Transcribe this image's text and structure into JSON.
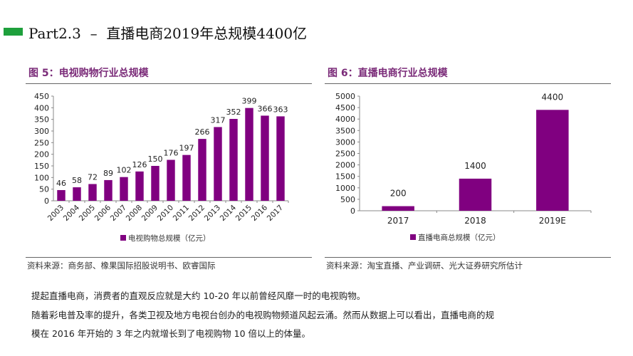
{
  "header": {
    "title": "Part2.3  –  直播电商2019年总规模4400亿",
    "accent": "#1ea03c"
  },
  "chart_data": [
    {
      "type": "bar",
      "title": "图 5：电视购物行业总规模",
      "categories": [
        "2003",
        "2004",
        "2005",
        "2006",
        "2007",
        "2008",
        "2009",
        "2010",
        "2011",
        "2012",
        "2013",
        "2014",
        "2015",
        "2016",
        "2017"
      ],
      "series": [
        {
          "name": "电视购物总规模（亿元）",
          "values": [
            46,
            58,
            72,
            89,
            102,
            126,
            150,
            176,
            197,
            266,
            317,
            352,
            399,
            366,
            363
          ]
        }
      ],
      "ylim": [
        0,
        450
      ],
      "yticks": [
        0,
        50,
        100,
        150,
        200,
        250,
        300,
        350,
        400,
        450
      ],
      "legend": "bottom",
      "grid": false,
      "color": "#800080",
      "source": "资料来源：商务部、橡果国际招股说明书、欧睿国际"
    },
    {
      "type": "bar",
      "title": "图 6：直播电商行业总规模",
      "categories": [
        "2017",
        "2018",
        "2019E"
      ],
      "series": [
        {
          "name": "直播电商总规模（亿元）",
          "values": [
            200,
            1400,
            4400
          ]
        }
      ],
      "ylim": [
        0,
        5000
      ],
      "yticks": [
        0,
        500,
        1000,
        1500,
        2000,
        2500,
        3000,
        3500,
        4000,
        4500,
        5000
      ],
      "legend": "bottom",
      "grid": false,
      "color": "#800080",
      "source": "资料来源：淘宝直播、产业调研、光大证券研究所估计"
    }
  ],
  "body": {
    "lines": [
      "提起直播电商，消费者的直观反应就是大约 10-20 年以前曾经风靡一时的电视购物。",
      "随着彩电普及率的提升，各类卫视及地方电视台创办的电视购物频道风起云涌。然而从数据上可以看出，直播电商的规",
      "模在 2016 年开始的 3 年之内就增长到了电视购物 10 倍以上的体量。"
    ]
  }
}
